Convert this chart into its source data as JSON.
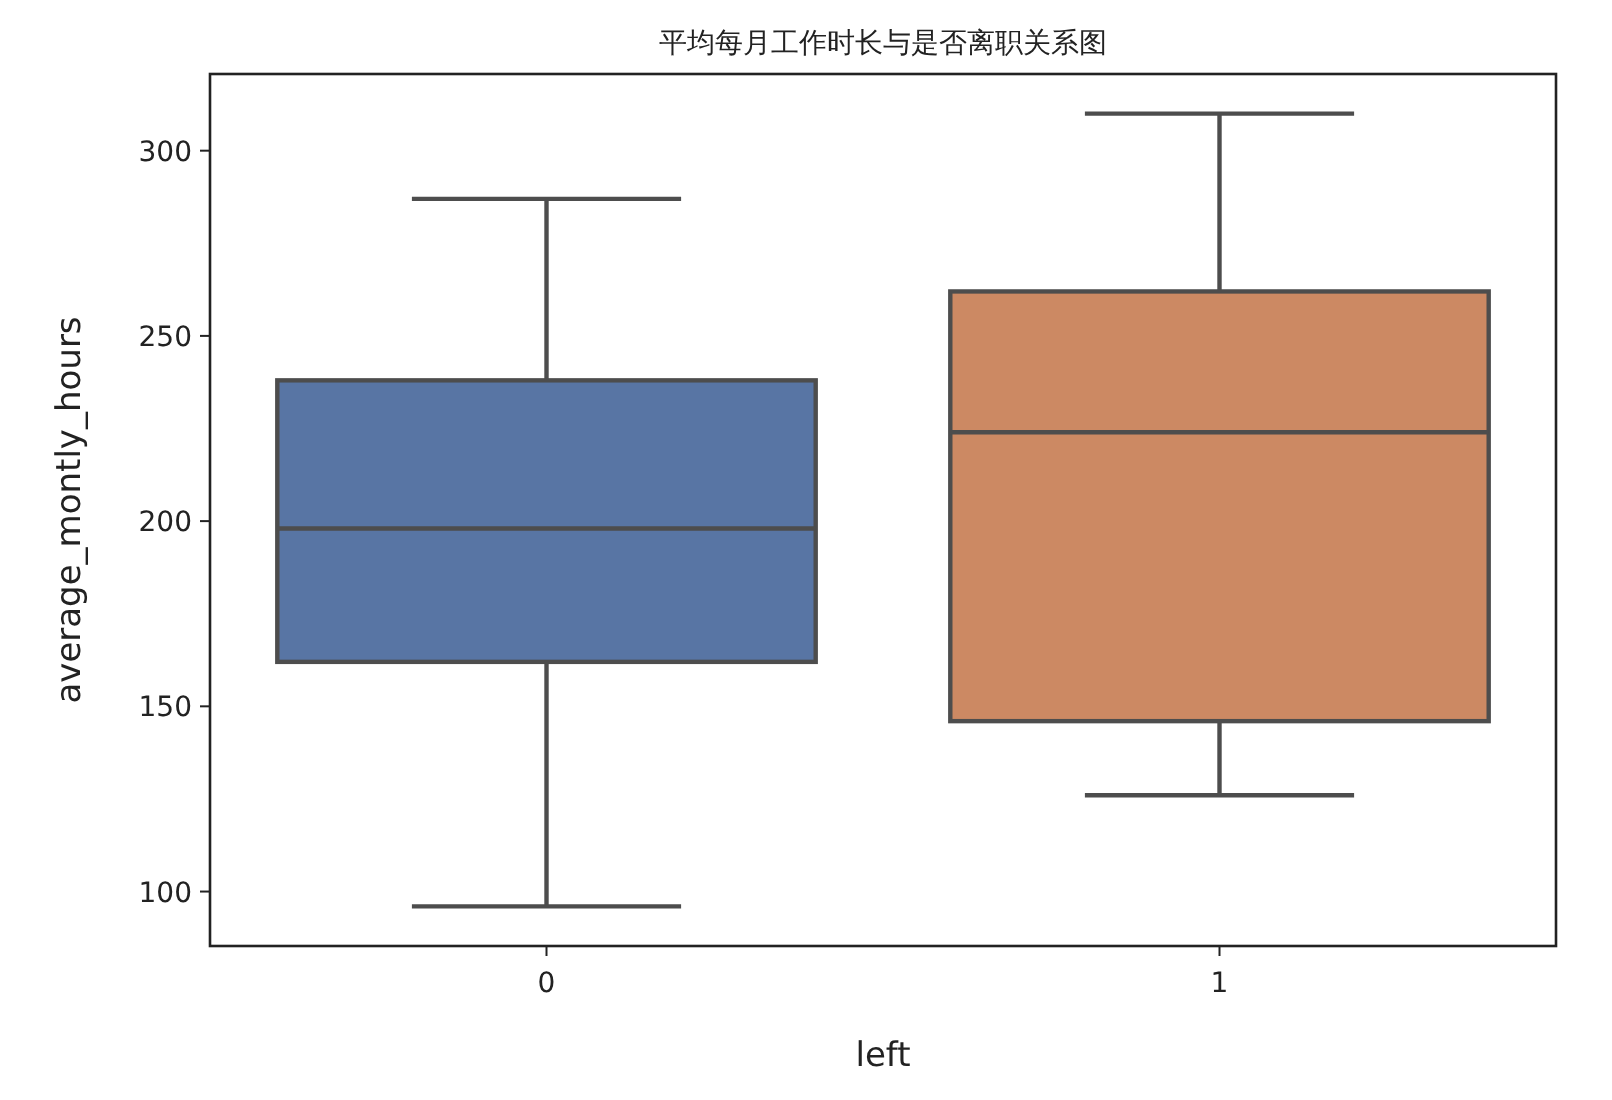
{
  "chart_data": {
    "type": "box",
    "title": "平均每月工作时长与是否离职关系图",
    "xlabel": "left",
    "ylabel": "average_montly_hours",
    "categories": [
      "0",
      "1"
    ],
    "series": [
      {
        "colors": [
          "#5875a4",
          "#cc8963"
        ],
        "boxes": [
          {
            "low": 96,
            "q1": 162,
            "median": 198,
            "q3": 238,
            "high": 287
          },
          {
            "low": 126,
            "q1": 146,
            "median": 224,
            "q3": 262,
            "high": 310
          }
        ]
      }
    ],
    "ylim": [
      85.3,
      320.7
    ],
    "yticks": [
      100,
      150,
      200,
      250,
      300
    ],
    "grid": false
  }
}
